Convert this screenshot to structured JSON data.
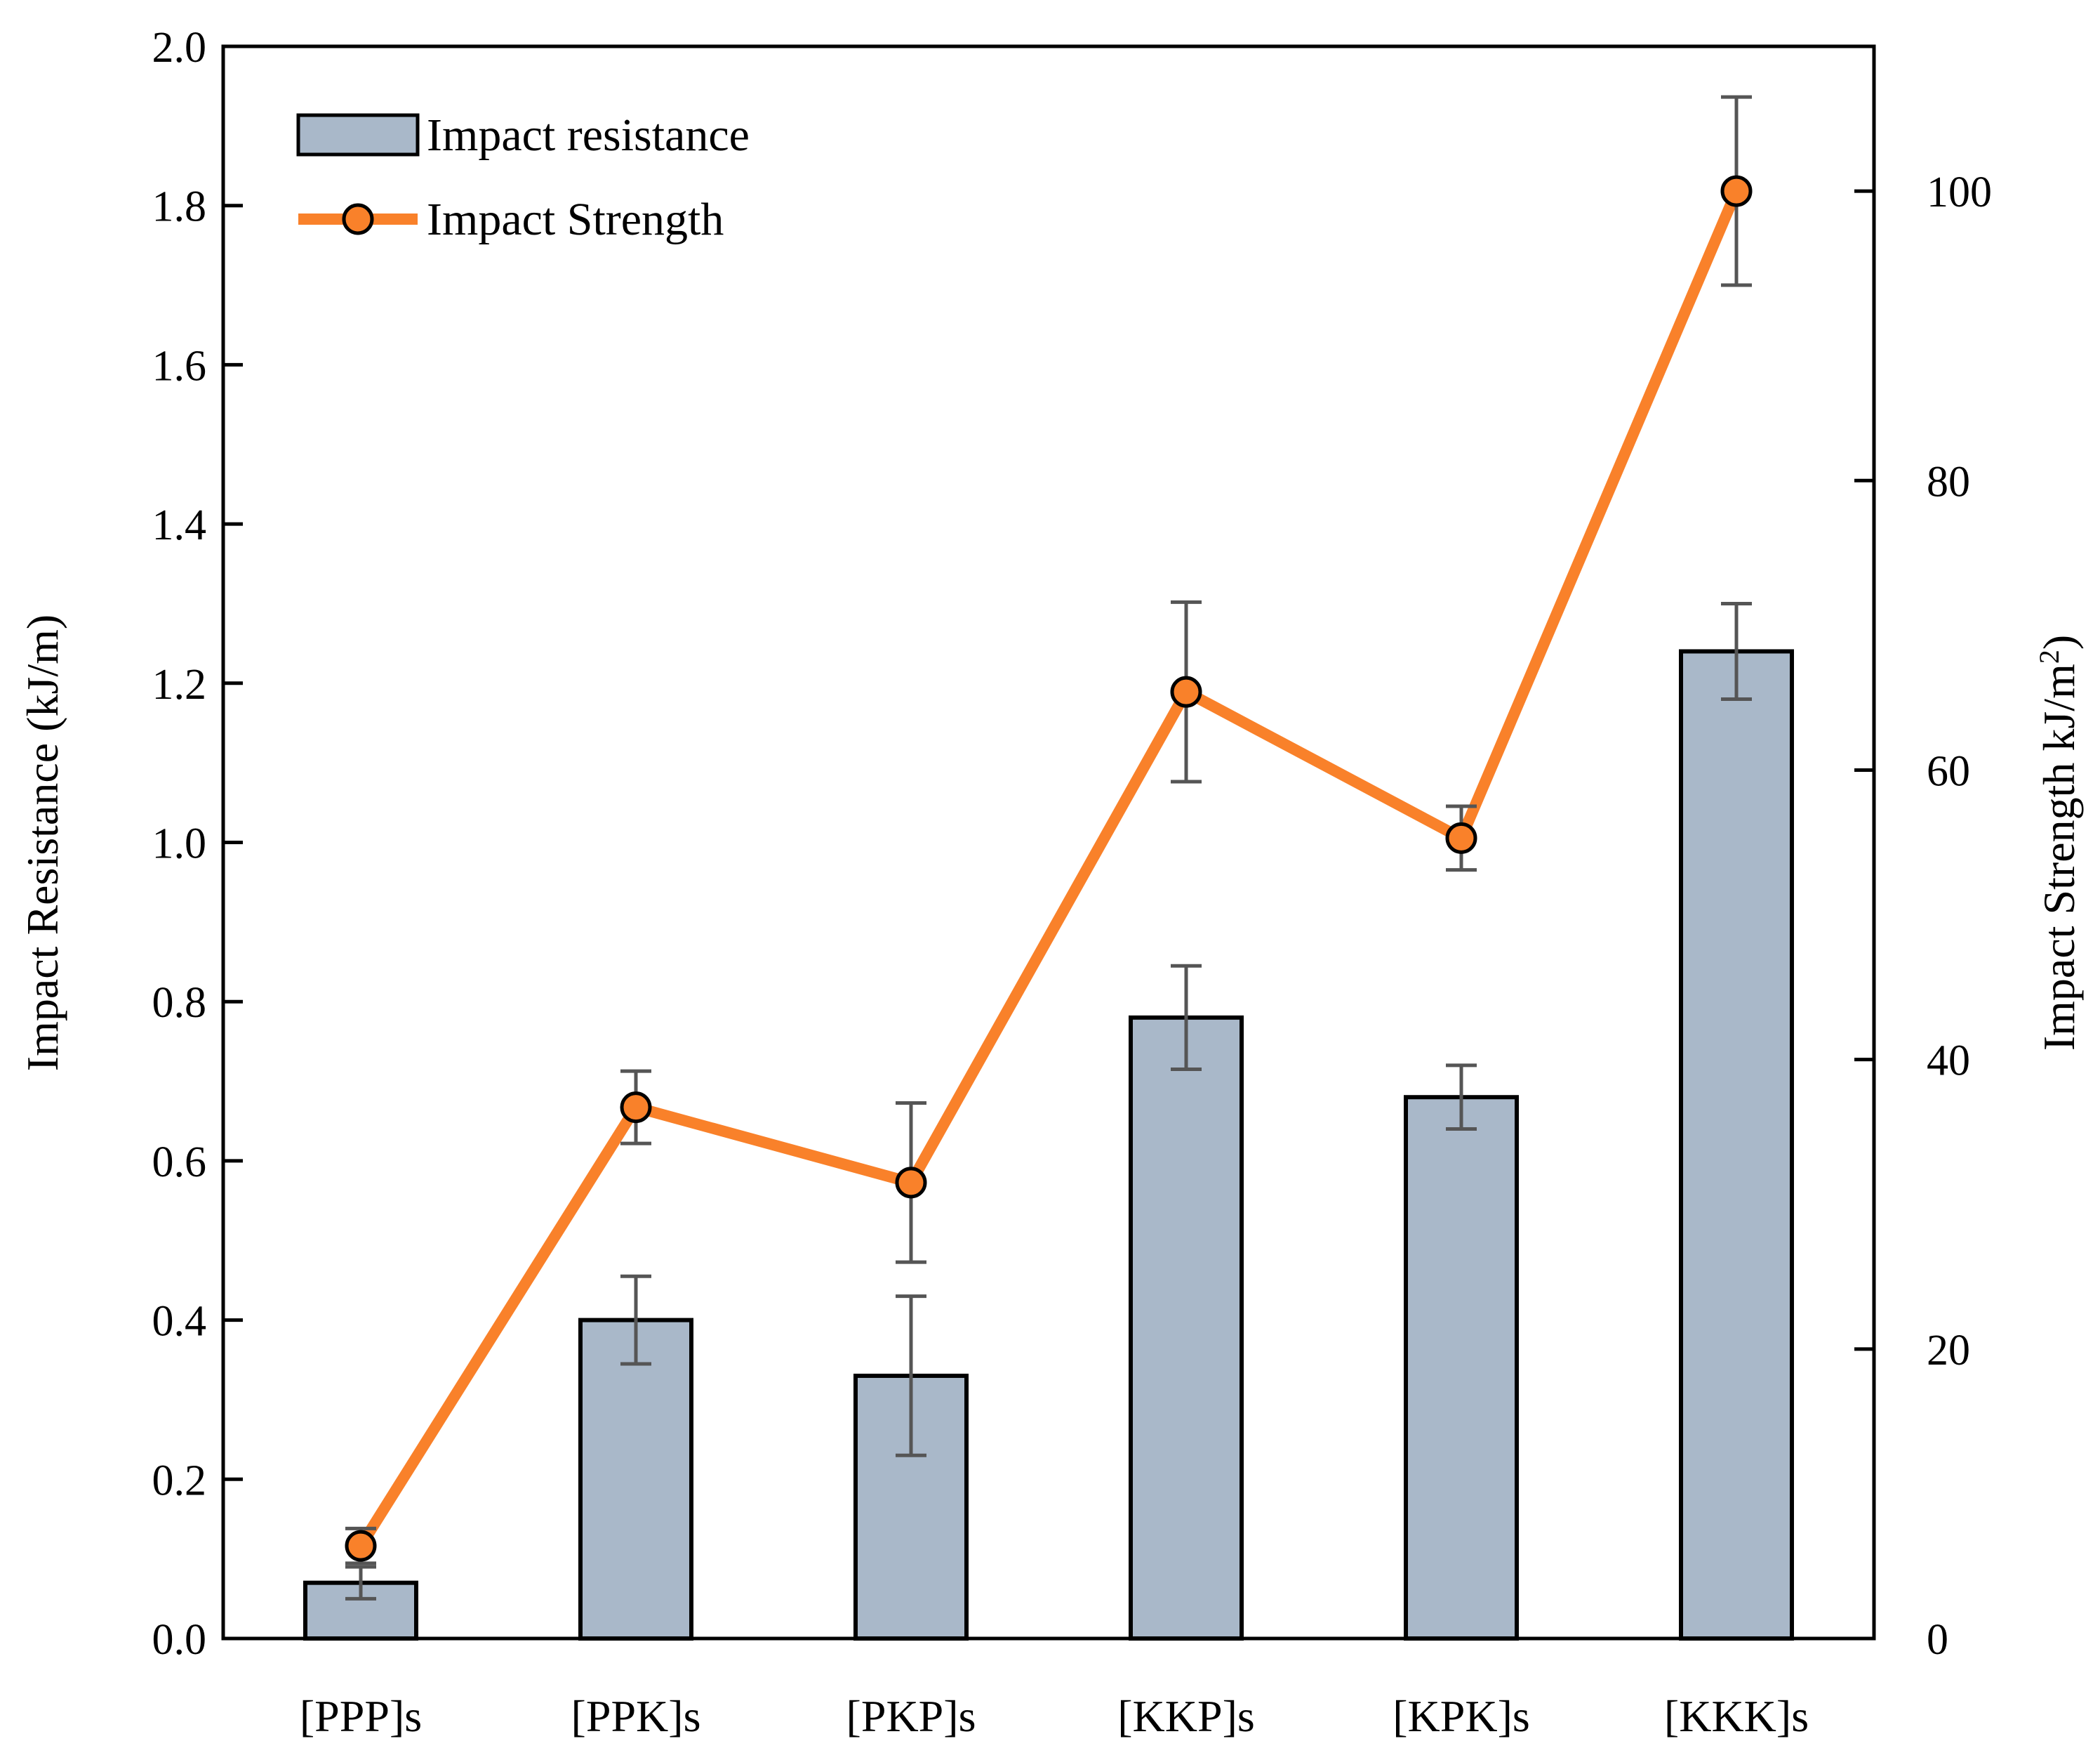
{
  "chart_data": {
    "type": "bar",
    "categories": [
      "[PPP]s",
      "[PPK]s",
      "[PKP]s",
      "[KKP]s",
      "[KPK]s",
      "[KKK]s"
    ],
    "series": [
      {
        "name": "Impact resistance",
        "type": "bar",
        "axis": "left",
        "values": [
          0.07,
          0.4,
          0.33,
          0.78,
          0.68,
          1.24
        ],
        "error": [
          0.02,
          0.055,
          0.1,
          0.065,
          0.04,
          0.06
        ],
        "color": "#a9b8c9"
      },
      {
        "name": "Impact Strength",
        "type": "line",
        "axis": "right",
        "values": [
          6.4,
          36.7,
          31.5,
          65.4,
          55.3,
          100.0
        ],
        "error": [
          1.2,
          2.5,
          5.5,
          6.2,
          2.2,
          6.5
        ],
        "color": "#f9812a"
      }
    ],
    "ylabel": "Impact Resistance (kJ/m)",
    "ylim": [
      0,
      2.0
    ],
    "yticks": [
      "0.0",
      "0.2",
      "0.4",
      "0.6",
      "0.8",
      "1.0",
      "1.2",
      "1.4",
      "1.6",
      "1.8",
      "2.0"
    ],
    "y2label": "Impact Strength kJ/m",
    "y2label_sup": "2",
    "y2label_close": ")",
    "y2lim": [
      0,
      110
    ],
    "y2ticks": [
      "0",
      "20",
      "40",
      "60",
      "80",
      "100"
    ],
    "grid": false,
    "legend": "top-left"
  }
}
